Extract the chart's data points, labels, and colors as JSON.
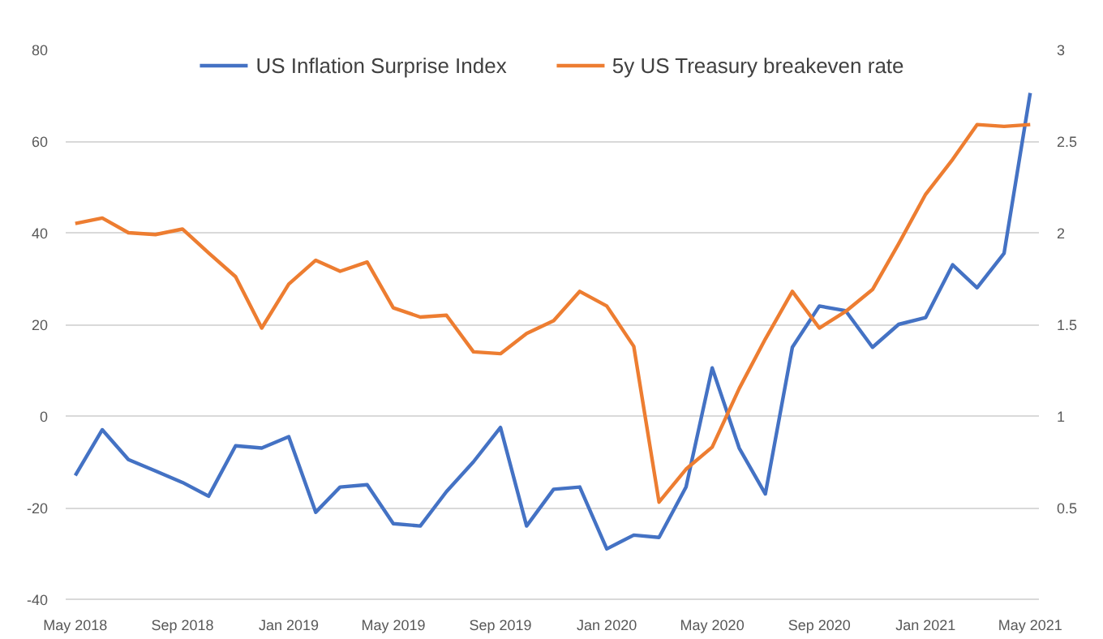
{
  "chart_data": {
    "type": "line",
    "x": [
      "2018-05",
      "2018-06",
      "2018-07",
      "2018-08",
      "2018-09",
      "2018-10",
      "2018-11",
      "2018-12",
      "2019-01",
      "2019-02",
      "2019-03",
      "2019-04",
      "2019-05",
      "2019-06",
      "2019-07",
      "2019-08",
      "2019-09",
      "2019-10",
      "2019-11",
      "2019-12",
      "2020-01",
      "2020-02",
      "2020-03",
      "2020-04",
      "2020-05",
      "2020-06",
      "2020-07",
      "2020-08",
      "2020-09",
      "2020-10",
      "2020-11",
      "2020-12",
      "2021-01",
      "2021-02",
      "2021-03",
      "2021-04",
      "2021-05"
    ],
    "series": [
      {
        "name": "US Inflation Surprise Index",
        "color": "#4472c4",
        "values": [
          -13,
          -3,
          -9.5,
          -12,
          -14.5,
          -17.5,
          -6.5,
          -7,
          -4.5,
          -21,
          -15.5,
          -15,
          -23.5,
          -24,
          -16.5,
          -10,
          -2.5,
          -24,
          -16,
          -15.5,
          -29,
          -26,
          -26.5,
          -15.5,
          10.5,
          -7,
          -17,
          15,
          24,
          23,
          15,
          20,
          21.5,
          33,
          28,
          35.5,
          70.5
        ]
      },
      {
        "name": "5y US Treasury breakeven rate",
        "color": "#ed7d31",
        "axis": "y2",
        "values": [
          2.05,
          2.08,
          2.0,
          1.99,
          2.02,
          1.89,
          1.76,
          1.48,
          1.72,
          1.85,
          1.79,
          1.84,
          1.59,
          1.54,
          1.55,
          1.35,
          1.34,
          1.45,
          1.52,
          1.68,
          1.6,
          1.38,
          0.53,
          0.71,
          0.83,
          1.15,
          1.42,
          1.68,
          1.48,
          1.57,
          1.69,
          1.94,
          2.21,
          2.4,
          2.59,
          2.58,
          2.59
        ]
      }
    ],
    "xlim": [
      "2018-04-20",
      "2021-05-11"
    ],
    "xticks": [
      {
        "value": "2018-05",
        "label": "May 2018"
      },
      {
        "value": "2018-09",
        "label": "Sep 2018"
      },
      {
        "value": "2019-01",
        "label": "Jan 2019"
      },
      {
        "value": "2019-05",
        "label": "May 2019"
      },
      {
        "value": "2019-09",
        "label": "Sep 2019"
      },
      {
        "value": "2020-01",
        "label": "Jan 2020"
      },
      {
        "value": "2020-05",
        "label": "May 2020"
      },
      {
        "value": "2020-09",
        "label": "Sep 2020"
      },
      {
        "value": "2021-01",
        "label": "Jan 2021"
      },
      {
        "value": "2021-05",
        "label": "May 2021"
      }
    ],
    "ylim": [
      -40,
      80
    ],
    "yticks": [
      -40,
      -20,
      0,
      20,
      40,
      60,
      80
    ],
    "y2lim": [
      0,
      3
    ],
    "y2ticks": [
      0.5,
      1,
      1.5,
      2,
      2.5,
      3
    ],
    "grid": "y",
    "legend": "top",
    "line_style": "solid",
    "marker": "none"
  }
}
